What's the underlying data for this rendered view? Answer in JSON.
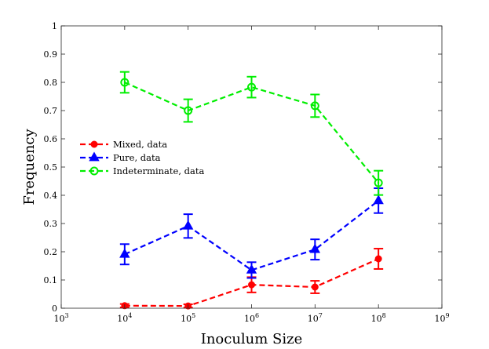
{
  "chart_data": {
    "type": "line",
    "title": "",
    "xlabel": "Inoculum Size",
    "ylabel": "Frequency",
    "xscale": "log10",
    "xlim_exp": [
      3,
      9
    ],
    "ylim": [
      0,
      1
    ],
    "x_tick_base": "10",
    "x_tick_exponents": [
      "3",
      "4",
      "5",
      "6",
      "7",
      "8",
      "9"
    ],
    "y_ticks": [
      "0",
      "0.1",
      "0.2",
      "0.3",
      "0.4",
      "0.5",
      "0.6",
      "0.7",
      "0.8",
      "0.9",
      "1"
    ],
    "grid": false,
    "legend_position": "middle-left",
    "series": [
      {
        "name": "Mixed, data",
        "color": "#ff0000",
        "marker": "circle",
        "x_exp": [
          4,
          5,
          6,
          7,
          8
        ],
        "values": [
          0.009,
          0.008,
          0.083,
          0.075,
          0.175
        ],
        "err": [
          0.006,
          0.006,
          0.027,
          0.022,
          0.036
        ]
      },
      {
        "name": "Pure, data",
        "color": "#0000ff",
        "marker": "triangle",
        "x_exp": [
          4,
          5,
          6,
          7,
          8
        ],
        "values": [
          0.191,
          0.291,
          0.135,
          0.208,
          0.381
        ],
        "err": [
          0.036,
          0.042,
          0.028,
          0.036,
          0.044
        ]
      },
      {
        "name": "Indeterminate, data",
        "color": "#00ee00",
        "marker": "circle-open",
        "x_exp": [
          4,
          5,
          6,
          7,
          8
        ],
        "values": [
          0.8,
          0.7,
          0.783,
          0.717,
          0.444
        ],
        "err": [
          0.037,
          0.04,
          0.037,
          0.04,
          0.043
        ]
      }
    ]
  }
}
